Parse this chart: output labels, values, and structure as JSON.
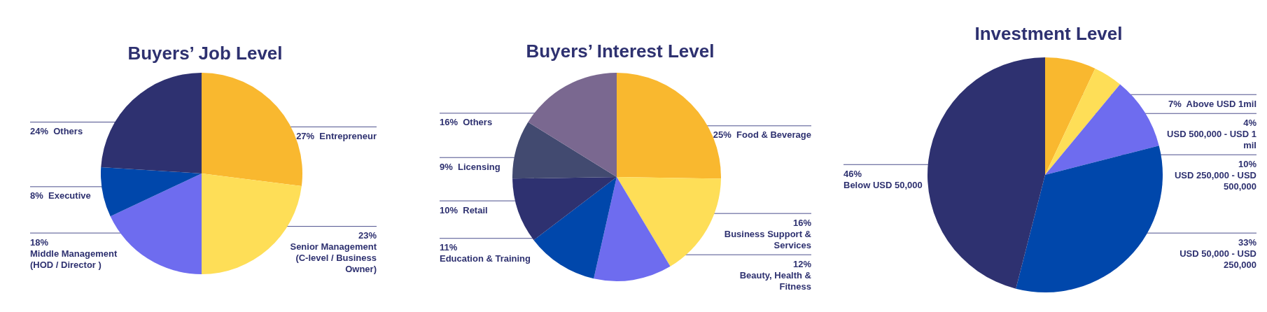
{
  "chart_data": [
    {
      "type": "pie",
      "title": "Buyers’ Job Level",
      "categories": [
        "Entrepreneur",
        "Senior Management (C-level / Business Owner)",
        "Middle Management (HOD / Director )",
        "Executive",
        "Others"
      ],
      "values": [
        27,
        23,
        18,
        8,
        24
      ],
      "value_labels": [
        "27%",
        "23%",
        "18%",
        "8%",
        "24%"
      ],
      "colors": [
        "#f9b82f",
        "#fede57",
        "#6e6cef",
        "#0047ab",
        "#2e3170"
      ]
    },
    {
      "type": "pie",
      "title": "Buyers’ Interest Level",
      "categories": [
        "Food & Beverage",
        "Business Support & Services",
        "Beauty, Health & Fitness",
        "Education & Training",
        "Retail",
        "Licensing",
        "Others"
      ],
      "values": [
        25,
        16,
        12,
        11,
        10,
        9,
        16
      ],
      "value_labels": [
        "25%",
        "16%",
        "12%",
        "11%",
        "10%",
        "9%",
        "16%"
      ],
      "colors": [
        "#f9b82f",
        "#fede57",
        "#6e6cef",
        "#0047ab",
        "#2e3170",
        "#424a70",
        "#7a6890"
      ]
    },
    {
      "type": "pie",
      "title": "Investment Level",
      "categories": [
        "Above USD 1mil",
        "USD 500,000 - USD 1 mil",
        "USD 250,000 - USD 500,000",
        "USD 50,000 - USD 250,000",
        "Below USD 50,000"
      ],
      "values": [
        7,
        4,
        10,
        33,
        46
      ],
      "value_labels": [
        "7%",
        "4%",
        "10%",
        "33%",
        "46%"
      ],
      "colors": [
        "#f9b82f",
        "#fede57",
        "#6e6cef",
        "#0047ab",
        "#2e3170"
      ]
    }
  ]
}
